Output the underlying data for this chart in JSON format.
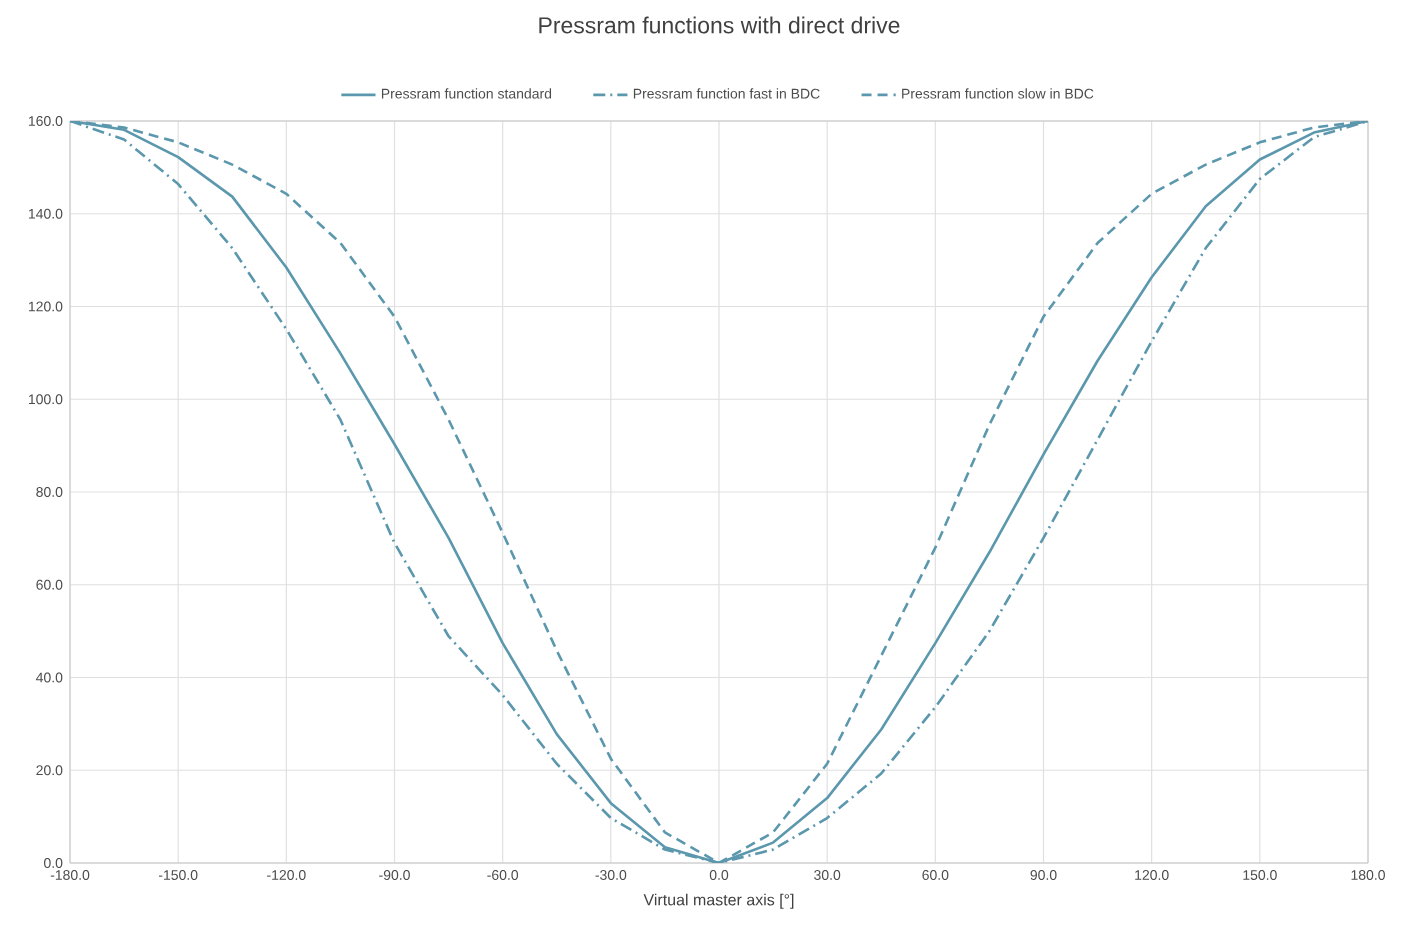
{
  "chart_data": {
    "type": "line",
    "title": "Pressram functions with direct drive",
    "xlabel": "Virtual master axis [°]",
    "x": [
      -180,
      -165,
      -150,
      -135,
      -120,
      -105,
      -90,
      -75,
      -60,
      -45,
      -30,
      -15,
      0,
      15,
      30,
      45,
      60,
      75,
      90,
      105,
      120,
      135,
      150,
      165,
      180
    ],
    "series": [
      {
        "name": "Pressram function standard",
        "color": "#5b97ad",
        "line_style": "solid",
        "values": [
          160,
          158.1,
          152.2,
          143.7,
          128.4,
          109.9,
          90.3,
          70.1,
          47.4,
          27.8,
          12.9,
          3.4,
          0,
          4.4,
          14,
          28.8,
          47.4,
          67,
          88.1,
          108.3,
          126.3,
          141.6,
          151.7,
          157.5,
          160
        ]
      },
      {
        "name": "Pressram function fast in BDC",
        "color": "#5b97ad",
        "line_style": "dashdot",
        "values": [
          160,
          156,
          146.4,
          132.6,
          115.1,
          95.6,
          69,
          48.9,
          36.2,
          21.4,
          9.7,
          2.9,
          0,
          2.9,
          9.7,
          19.3,
          33.6,
          50,
          70.1,
          91.3,
          112.5,
          132.6,
          147.5,
          156.5,
          160
        ]
      },
      {
        "name": "Pressram function slow in BDC",
        "color": "#5b97ad",
        "line_style": "dashed",
        "values": [
          160,
          158.6,
          155.4,
          150.6,
          144.3,
          133.7,
          117.8,
          95.6,
          71.2,
          45.8,
          22.5,
          6.6,
          0,
          6.6,
          21.4,
          44.7,
          68,
          94.5,
          117.8,
          133.7,
          144.3,
          150.6,
          155.4,
          158.6,
          160
        ]
      }
    ],
    "xlim": [
      -180,
      180
    ],
    "ylim": [
      0,
      160
    ],
    "xticks": [
      {
        "value": -180,
        "label": "-180.0"
      },
      {
        "value": -150,
        "label": "-150.0"
      },
      {
        "value": -120,
        "label": "-120.0"
      },
      {
        "value": -90,
        "label": "-90.0"
      },
      {
        "value": -60,
        "label": "-60.0"
      },
      {
        "value": -30,
        "label": "-30.0"
      },
      {
        "value": 0,
        "label": "0.0"
      },
      {
        "value": 30,
        "label": "30.0"
      },
      {
        "value": 60,
        "label": "60.0"
      },
      {
        "value": 90,
        "label": "90.0"
      },
      {
        "value": 120,
        "label": "120.0"
      },
      {
        "value": 150,
        "label": "150.0"
      },
      {
        "value": 180,
        "label": "180.0"
      }
    ],
    "yticks": [
      {
        "value": 0,
        "label": "0.0"
      },
      {
        "value": 20,
        "label": "20.0"
      },
      {
        "value": 40,
        "label": "40.0"
      },
      {
        "value": 60,
        "label": "60.0"
      },
      {
        "value": 80,
        "label": "80.0"
      },
      {
        "value": 100,
        "label": "100.0"
      },
      {
        "value": 120,
        "label": "120.0"
      },
      {
        "value": 140,
        "label": "140.0"
      },
      {
        "value": 160,
        "label": "160.0"
      }
    ],
    "grid": true,
    "legend": "top"
  }
}
